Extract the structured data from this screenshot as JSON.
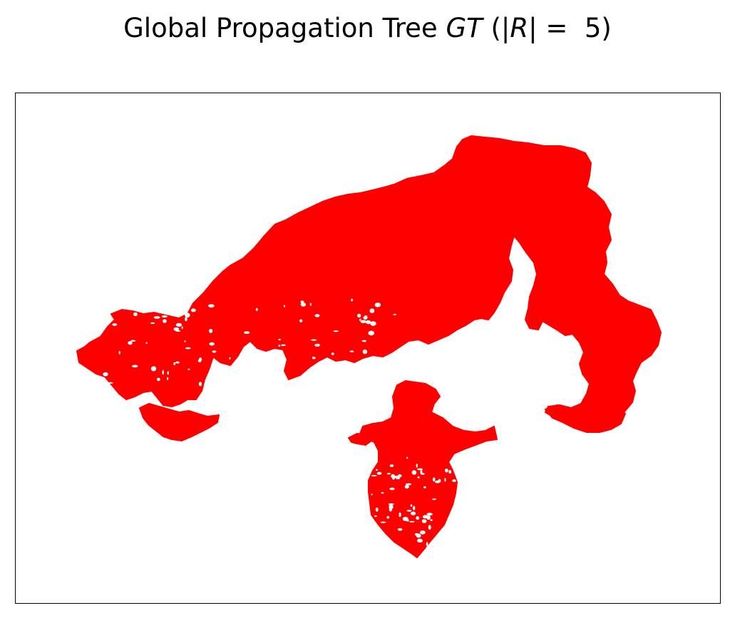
{
  "chart_data": {
    "type": "network",
    "title": {
      "prefix": "Global Propagation Tree ",
      "math": "GT",
      "paren_open": " (|",
      "math2": "R",
      "suffix": "| =  5)"
    },
    "xlabel": "",
    "ylabel": "",
    "axis_ticks": false,
    "grid": false,
    "edge_color": "#ff0000",
    "components": [
      {
        "name": "upper-main-region"
      },
      {
        "name": "lower-island-region"
      }
    ]
  }
}
